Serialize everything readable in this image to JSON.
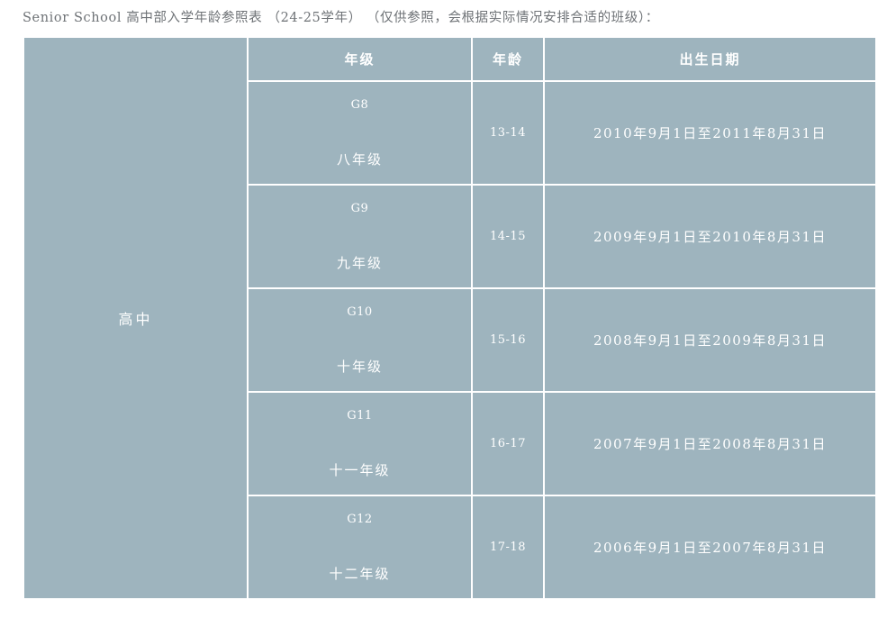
{
  "page": {
    "title": "Senior School 高中部入学年龄参照表 （24-25学年） （仅供参照，会根据实际情况安排合适的班级）："
  },
  "table": {
    "level_label": "高中",
    "headers": {
      "grade": "年级",
      "age": "年龄",
      "birth_date": "出生日期"
    },
    "rows": [
      {
        "grade_en": "G8",
        "grade_cn": "八年级",
        "age": "13-14",
        "birth_date": "2010年9月1日至2011年8月31日"
      },
      {
        "grade_en": "G9",
        "grade_cn": "九年级",
        "age": "14-15",
        "birth_date": "2009年9月1日至2010年8月31日"
      },
      {
        "grade_en": "G10",
        "grade_cn": "十年级",
        "age": "15-16",
        "birth_date": "2008年9月1日至2009年8月31日"
      },
      {
        "grade_en": "G11",
        "grade_cn": "十一年级",
        "age": "16-17",
        "birth_date": "2007年9月1日至2008年8月31日"
      },
      {
        "grade_en": "G12",
        "grade_cn": "十二年级",
        "age": "17-18",
        "birth_date": "2006年9月1日至2007年8月31日"
      }
    ],
    "colors": {
      "cell_background": "#9eb4be",
      "grid_line": "#ffffff",
      "cell_text": "#ffffff",
      "title_text": "#6e7276"
    }
  }
}
